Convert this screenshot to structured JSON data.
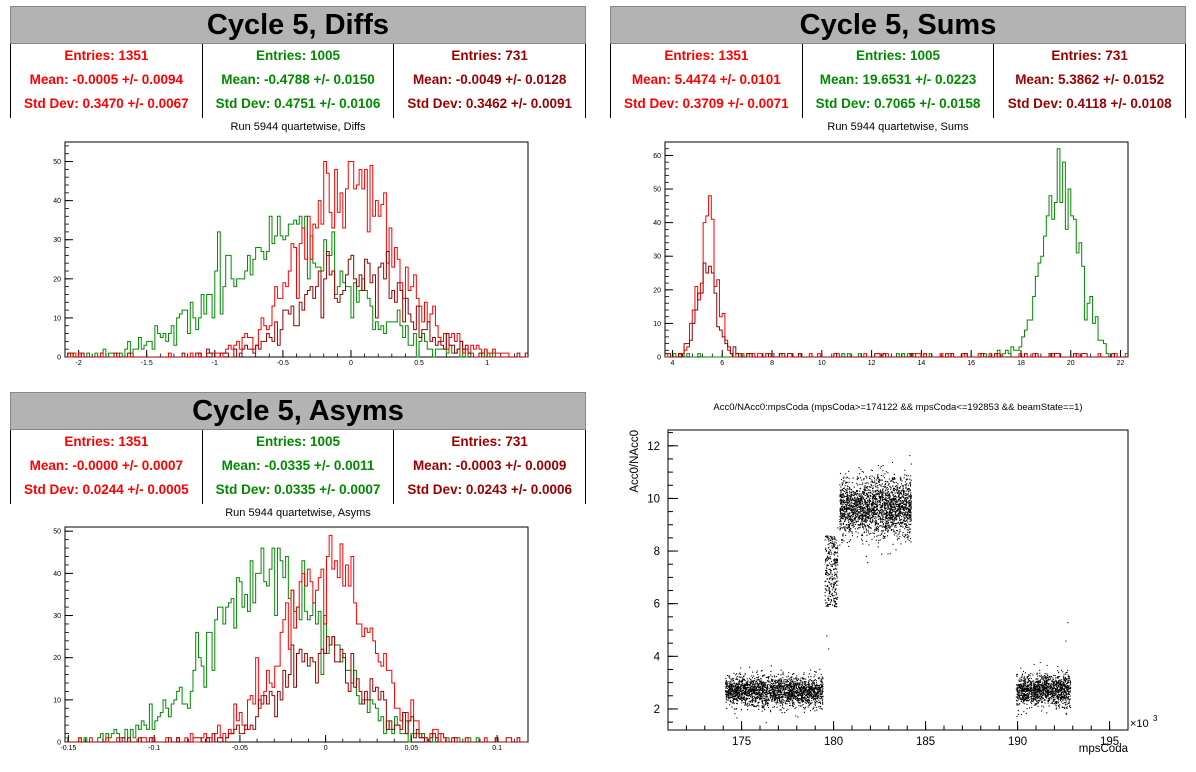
{
  "diffs": {
    "title": "Cycle 5, Diffs",
    "subtitle": "Run 5944 quartetwise, Diffs",
    "stats": [
      {
        "entries": "Entries: 1351",
        "mean": "Mean: -0.0005 +/- 0.0094",
        "std": "Std Dev: 0.3470 +/- 0.0067",
        "color": "#ff0000"
      },
      {
        "entries": "Entries: 1005",
        "mean": "Mean: -0.4788 +/- 0.0150",
        "std": "Std Dev: 0.4751 +/- 0.0106",
        "color": "#008a00"
      },
      {
        "entries": "Entries: 731",
        "mean": "Mean: -0.0049 +/- 0.0128",
        "std": "Std Dev: 0.3462 +/- 0.0091",
        "color": "#990000"
      }
    ]
  },
  "sums": {
    "title": "Cycle 5, Sums",
    "subtitle": "Run 5944 quartetwise, Sums",
    "stats": [
      {
        "entries": "Entries: 1351",
        "mean": "Mean: 5.4474 +/- 0.0101",
        "std": "Std Dev: 0.3709 +/- 0.0071",
        "color": "#ff0000"
      },
      {
        "entries": "Entries: 1005",
        "mean": "Mean: 19.6531 +/- 0.0223",
        "std": "Std Dev: 0.7065 +/- 0.0158",
        "color": "#008a00"
      },
      {
        "entries": "Entries: 731",
        "mean": "Mean: 5.3862 +/- 0.0152",
        "std": "Std Dev: 0.4118 +/- 0.0108",
        "color": "#990000"
      }
    ]
  },
  "asyms": {
    "title": "Cycle 5, Asyms",
    "subtitle": "Run 5944 quartetwise, Asyms",
    "stats": [
      {
        "entries": "Entries: 1351",
        "mean": "Mean: -0.0000 +/- 0.0007",
        "std": "Std Dev: 0.0244 +/- 0.0005",
        "color": "#ff0000"
      },
      {
        "entries": "Entries: 1005",
        "mean": "Mean: -0.0335 +/- 0.0011",
        "std": "Std Dev: 0.0335 +/- 0.0007",
        "color": "#008a00"
      },
      {
        "entries": "Entries: 731",
        "mean": "Mean: -0.0003 +/- 0.0009",
        "std": "Std Dev: 0.0243 +/- 0.0006",
        "color": "#990000"
      }
    ]
  },
  "scatter_panel": {
    "title": "Acc0/NAcc0:mpsCoda (mpsCoda>=174122 && mpsCoda<=192853 && beamState==1)"
  },
  "chart_data": [
    {
      "type": "histogram",
      "id": "diffs",
      "xlim": [
        -2.1,
        1.3
      ],
      "ylim": [
        0,
        55
      ],
      "xticks": [
        -2,
        -1.5,
        -1,
        -0.5,
        0,
        0.5,
        1
      ],
      "xtick_labels": [
        "-2",
        "-1.5",
        "-1",
        "-0.5",
        "0",
        "0.5",
        "1"
      ],
      "yticks": [
        0,
        10,
        20,
        30,
        40,
        50
      ],
      "series": [
        {
          "color": "#008a00",
          "mean": -0.4788,
          "std": 0.4751,
          "entries": 1005,
          "peak": 36
        },
        {
          "color": "#ff0000",
          "mean": -0.0005,
          "std": 0.347,
          "entries": 1351,
          "peak": 53
        },
        {
          "color": "#990000",
          "mean": -0.0049,
          "std": 0.3462,
          "entries": 731,
          "peak": 27
        }
      ]
    },
    {
      "type": "histogram",
      "id": "sums",
      "xlim": [
        3.7,
        22.3
      ],
      "ylim": [
        0,
        64
      ],
      "xticks": [
        4,
        6,
        8,
        10,
        12,
        14,
        16,
        18,
        20,
        22
      ],
      "xtick_labels": [
        "4",
        "6",
        "8",
        "10",
        "12",
        "14",
        "16",
        "18",
        "20",
        "22"
      ],
      "yticks": [
        0,
        10,
        20,
        30,
        40,
        50,
        60
      ],
      "series": [
        {
          "color": "#008a00",
          "mean": 19.6531,
          "std": 0.7065,
          "entries": 1005,
          "peak": 62
        },
        {
          "color": "#ff0000",
          "mean": 5.4474,
          "std": 0.3709,
          "entries": 1351,
          "peak": 51
        },
        {
          "color": "#990000",
          "mean": 5.3862,
          "std": 0.4118,
          "entries": 731,
          "peak": 30
        }
      ]
    },
    {
      "type": "histogram",
      "id": "asyms",
      "xlim": [
        -0.152,
        0.118
      ],
      "ylim": [
        0,
        51
      ],
      "xticks": [
        -0.15,
        -0.1,
        -0.05,
        0,
        0.05,
        0.1
      ],
      "xtick_labels": [
        "-0.15",
        "-0.1",
        "-0.05",
        "0",
        "0.05",
        "0.1"
      ],
      "yticks": [
        0,
        10,
        20,
        30,
        40,
        50
      ],
      "series": [
        {
          "color": "#008a00",
          "mean": -0.0335,
          "std": 0.0335,
          "entries": 1005,
          "peak": 46
        },
        {
          "color": "#ff0000",
          "mean": 0.0,
          "std": 0.0244,
          "entries": 1351,
          "peak": 49
        },
        {
          "color": "#990000",
          "mean": -0.0003,
          "std": 0.0243,
          "entries": 731,
          "peak": 25
        }
      ]
    },
    {
      "type": "scatter",
      "id": "acc",
      "xlabel": "mpsCoda",
      "ylabel": "Acc0/NAcc0",
      "xexp": "×10",
      "xexp_power": "3",
      "xlim": [
        171,
        196
      ],
      "ylim": [
        1.2,
        12.6
      ],
      "xticks": [
        175,
        180,
        185,
        190,
        195
      ],
      "xtick_labels": [
        "175",
        "180",
        "185",
        "190",
        "195"
      ],
      "yticks": [
        2,
        4,
        6,
        8,
        10,
        12
      ],
      "ytick_labels": [
        "2",
        "4",
        "6",
        "8",
        "10",
        "12"
      ],
      "clusters": [
        {
          "x": [
            174.1,
            179.4
          ],
          "y": 2.7,
          "spread": 0.28,
          "n": 2200
        },
        {
          "x": [
            179.5,
            180.2
          ],
          "y": 7.0,
          "spread": 0.5,
          "n": 300
        },
        {
          "x": [
            180.3,
            184.2
          ],
          "y": 9.7,
          "spread": 0.55,
          "n": 2200
        },
        {
          "x": [
            189.9,
            192.85
          ],
          "y": 2.75,
          "spread": 0.3,
          "n": 1300
        }
      ]
    }
  ]
}
